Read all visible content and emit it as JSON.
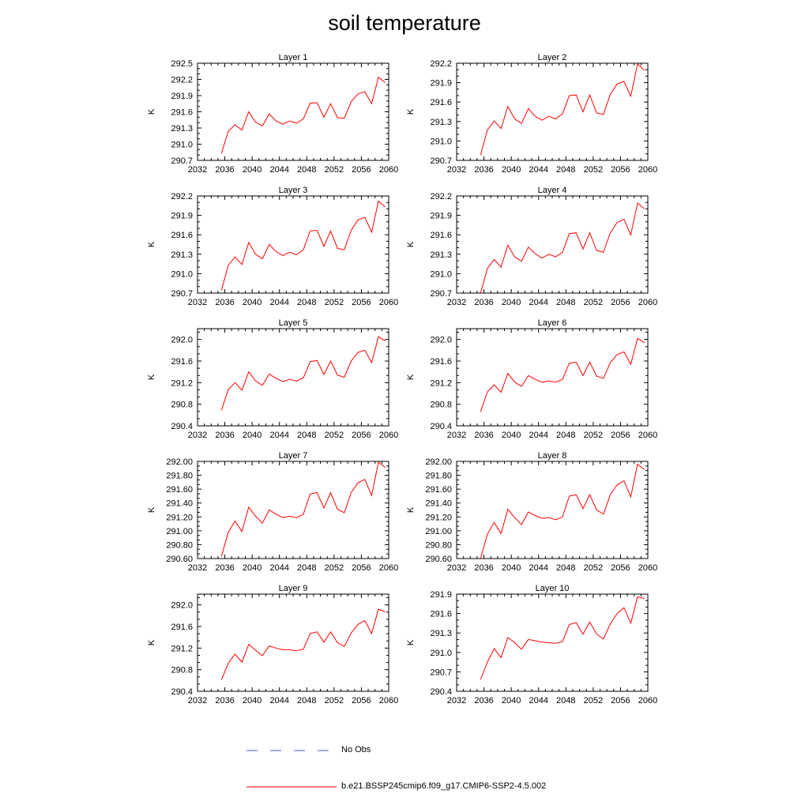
{
  "title": "soil temperature",
  "legend": {
    "entries": [
      {
        "label": "No Obs",
        "color": "#4a5ac8",
        "dash": true
      },
      {
        "label": "b.e21.BSSP245cmip6.f09_g17.CMIP6-SSP2-4.5.002",
        "color": "#ff0000",
        "dash": false
      }
    ]
  },
  "chart_data": [
    {
      "type": "line",
      "title": "Layer 1",
      "ylabel": "K",
      "xlim": [
        2032,
        2060
      ],
      "ylim": [
        290.7,
        292.5
      ],
      "xticks": [
        "2032",
        "2036",
        "2040",
        "2044",
        "2048",
        "2052",
        "2056",
        "2060"
      ],
      "yticks": [
        "290.7",
        "291.0",
        "291.3",
        "291.6",
        "291.9",
        "292.2",
        "292.5"
      ],
      "series": [
        {
          "color": "#ff0000",
          "x": [
            2035.5,
            2036.5,
            2037.5,
            2038.5,
            2039.5,
            2040.5,
            2041.5,
            2042.5,
            2043.5,
            2044.5,
            2045.5,
            2046.5,
            2047.5,
            2048.5,
            2049.5,
            2050.5,
            2051.5,
            2052.5,
            2053.5,
            2054.5,
            2055.5,
            2056.5,
            2057.5,
            2058.5,
            2059.5
          ],
          "y": [
            290.83,
            291.24,
            291.36,
            291.26,
            291.6,
            291.41,
            291.34,
            291.56,
            291.43,
            291.37,
            291.43,
            291.39,
            291.47,
            291.76,
            291.77,
            291.5,
            291.75,
            291.49,
            291.48,
            291.79,
            291.93,
            291.97,
            291.75,
            292.24,
            292.14
          ]
        }
      ]
    },
    {
      "type": "line",
      "title": "Layer 2",
      "ylabel": "K",
      "xlim": [
        2032,
        2060
      ],
      "ylim": [
        290.7,
        292.2
      ],
      "xticks": [
        "2032",
        "2036",
        "2040",
        "2044",
        "2048",
        "2052",
        "2056",
        "2060"
      ],
      "yticks": [
        "290.7",
        "291.0",
        "291.3",
        "291.6",
        "291.9",
        "292.2"
      ],
      "series": [
        {
          "color": "#ff0000",
          "x": [
            2035.5,
            2036.5,
            2037.5,
            2038.5,
            2039.5,
            2040.5,
            2041.5,
            2042.5,
            2043.5,
            2044.5,
            2045.5,
            2046.5,
            2047.5,
            2048.5,
            2049.5,
            2050.5,
            2051.5,
            2052.5,
            2053.5,
            2054.5,
            2055.5,
            2056.5,
            2057.5,
            2058.5,
            2059.5
          ],
          "y": [
            290.78,
            291.17,
            291.31,
            291.19,
            291.53,
            291.34,
            291.27,
            291.5,
            291.38,
            291.32,
            291.38,
            291.34,
            291.42,
            291.7,
            291.71,
            291.45,
            291.71,
            291.43,
            291.41,
            291.72,
            291.88,
            291.92,
            291.69,
            292.19,
            292.09
          ]
        }
      ]
    },
    {
      "type": "line",
      "title": "Layer 3",
      "ylabel": "K",
      "xlim": [
        2032,
        2060
      ],
      "ylim": [
        290.7,
        292.2
      ],
      "xticks": [
        "2032",
        "2036",
        "2040",
        "2044",
        "2048",
        "2052",
        "2056",
        "2060"
      ],
      "yticks": [
        "290.7",
        "291.0",
        "291.3",
        "291.6",
        "291.9",
        "292.2"
      ],
      "series": [
        {
          "color": "#ff0000",
          "x": [
            2035.5,
            2036.5,
            2037.5,
            2038.5,
            2039.5,
            2040.5,
            2041.5,
            2042.5,
            2043.5,
            2044.5,
            2045.5,
            2046.5,
            2047.5,
            2048.5,
            2049.5,
            2050.5,
            2051.5,
            2052.5,
            2053.5,
            2054.5,
            2055.5,
            2056.5,
            2057.5,
            2058.5,
            2059.5
          ],
          "y": [
            290.74,
            291.13,
            291.26,
            291.14,
            291.48,
            291.3,
            291.23,
            291.45,
            291.34,
            291.28,
            291.33,
            291.29,
            291.37,
            291.66,
            291.67,
            291.42,
            291.66,
            291.39,
            291.37,
            291.67,
            291.83,
            291.87,
            291.64,
            292.12,
            292.03
          ]
        }
      ]
    },
    {
      "type": "line",
      "title": "Layer 4",
      "ylabel": "K",
      "xlim": [
        2032,
        2060
      ],
      "ylim": [
        290.7,
        292.2
      ],
      "xticks": [
        "2032",
        "2036",
        "2040",
        "2044",
        "2048",
        "2052",
        "2056",
        "2060"
      ],
      "yticks": [
        "290.7",
        "291.0",
        "291.3",
        "291.6",
        "291.9",
        "292.2"
      ],
      "series": [
        {
          "color": "#ff0000",
          "x": [
            2035.5,
            2036.5,
            2037.5,
            2038.5,
            2039.5,
            2040.5,
            2041.5,
            2042.5,
            2043.5,
            2044.5,
            2045.5,
            2046.5,
            2047.5,
            2048.5,
            2049.5,
            2050.5,
            2051.5,
            2052.5,
            2053.5,
            2054.5,
            2055.5,
            2056.5,
            2057.5,
            2058.5,
            2059.5
          ],
          "y": [
            290.7,
            291.08,
            291.22,
            291.1,
            291.44,
            291.26,
            291.19,
            291.41,
            291.31,
            291.24,
            291.3,
            291.26,
            291.33,
            291.62,
            291.63,
            291.38,
            291.63,
            291.36,
            291.33,
            291.63,
            291.79,
            291.84,
            291.6,
            292.09,
            292.0
          ]
        }
      ]
    },
    {
      "type": "line",
      "title": "Layer 5",
      "ylabel": "K",
      "xlim": [
        2032,
        2060
      ],
      "ylim": [
        290.4,
        292.2
      ],
      "xticks": [
        "2032",
        "2036",
        "2040",
        "2044",
        "2048",
        "2052",
        "2056",
        "2060"
      ],
      "yticks": [
        "290.4",
        "290.8",
        "291.2",
        "291.6",
        "292.0"
      ],
      "series": [
        {
          "color": "#ff0000",
          "x": [
            2035.5,
            2036.5,
            2037.5,
            2038.5,
            2039.5,
            2040.5,
            2041.5,
            2042.5,
            2043.5,
            2044.5,
            2045.5,
            2046.5,
            2047.5,
            2048.5,
            2049.5,
            2050.5,
            2051.5,
            2052.5,
            2053.5,
            2054.5,
            2055.5,
            2056.5,
            2057.5,
            2058.5,
            2059.5
          ],
          "y": [
            290.69,
            291.07,
            291.2,
            291.06,
            291.4,
            291.23,
            291.15,
            291.36,
            291.28,
            291.22,
            291.26,
            291.23,
            291.29,
            291.59,
            291.61,
            291.35,
            291.6,
            291.34,
            291.3,
            291.6,
            291.76,
            291.8,
            291.57,
            292.05,
            291.97
          ]
        }
      ]
    },
    {
      "type": "line",
      "title": "Layer 6",
      "ylabel": "K",
      "xlim": [
        2032,
        2060
      ],
      "ylim": [
        290.4,
        292.2
      ],
      "xticks": [
        "2032",
        "2036",
        "2040",
        "2044",
        "2048",
        "2052",
        "2056",
        "2060"
      ],
      "yticks": [
        "290.4",
        "290.8",
        "291.2",
        "291.6",
        "292.0"
      ],
      "series": [
        {
          "color": "#ff0000",
          "x": [
            2035.5,
            2036.5,
            2037.5,
            2038.5,
            2039.5,
            2040.5,
            2041.5,
            2042.5,
            2043.5,
            2044.5,
            2045.5,
            2046.5,
            2047.5,
            2048.5,
            2049.5,
            2050.5,
            2051.5,
            2052.5,
            2053.5,
            2054.5,
            2055.5,
            2056.5,
            2057.5,
            2058.5,
            2059.5
          ],
          "y": [
            290.66,
            291.03,
            291.16,
            291.02,
            291.37,
            291.21,
            291.13,
            291.33,
            291.26,
            291.21,
            291.23,
            291.21,
            291.26,
            291.56,
            291.58,
            291.33,
            291.58,
            291.32,
            291.28,
            291.57,
            291.72,
            291.77,
            291.54,
            292.02,
            291.94
          ]
        }
      ]
    },
    {
      "type": "line",
      "title": "Layer 7",
      "ylabel": "K",
      "xlim": [
        2032,
        2060
      ],
      "ylim": [
        290.6,
        292.0
      ],
      "xticks": [
        "2032",
        "2036",
        "2040",
        "2044",
        "2048",
        "2052",
        "2056",
        "2060"
      ],
      "yticks": [
        "290.60",
        "290.80",
        "291.00",
        "291.20",
        "291.40",
        "291.60",
        "291.80",
        "292.00"
      ],
      "series": [
        {
          "color": "#ff0000",
          "x": [
            2035.5,
            2036.5,
            2037.5,
            2038.5,
            2039.5,
            2040.5,
            2041.5,
            2042.5,
            2043.5,
            2044.5,
            2045.5,
            2046.5,
            2047.5,
            2048.5,
            2049.5,
            2050.5,
            2051.5,
            2052.5,
            2053.5,
            2054.5,
            2055.5,
            2056.5,
            2057.5,
            2058.5,
            2059.5
          ],
          "y": [
            290.63,
            290.98,
            291.14,
            290.99,
            291.34,
            291.21,
            291.11,
            291.3,
            291.24,
            291.19,
            291.21,
            291.19,
            291.24,
            291.53,
            291.55,
            291.33,
            291.55,
            291.31,
            291.26,
            291.55,
            291.69,
            291.74,
            291.51,
            291.99,
            291.91
          ]
        }
      ]
    },
    {
      "type": "line",
      "title": "Layer 8",
      "ylabel": "K",
      "xlim": [
        2032,
        2060
      ],
      "ylim": [
        290.6,
        292.0
      ],
      "xticks": [
        "2032",
        "2036",
        "2040",
        "2044",
        "2048",
        "2052",
        "2056",
        "2060"
      ],
      "yticks": [
        "290.60",
        "290.80",
        "291.00",
        "291.20",
        "291.40",
        "291.60",
        "291.80",
        "292.00"
      ],
      "series": [
        {
          "color": "#ff0000",
          "x": [
            2035.5,
            2036.5,
            2037.5,
            2038.5,
            2039.5,
            2040.5,
            2041.5,
            2042.5,
            2043.5,
            2044.5,
            2045.5,
            2046.5,
            2047.5,
            2048.5,
            2049.5,
            2050.5,
            2051.5,
            2052.5,
            2053.5,
            2054.5,
            2055.5,
            2056.5,
            2057.5,
            2058.5,
            2059.5
          ],
          "y": [
            290.6,
            290.95,
            291.12,
            290.96,
            291.31,
            291.19,
            291.09,
            291.27,
            291.22,
            291.18,
            291.19,
            291.16,
            291.2,
            291.5,
            291.52,
            291.32,
            291.52,
            291.3,
            291.24,
            291.52,
            291.66,
            291.72,
            291.49,
            291.96,
            291.88
          ]
        }
      ]
    },
    {
      "type": "line",
      "title": "Layer 9",
      "ylabel": "K",
      "xlim": [
        2032,
        2060
      ],
      "ylim": [
        290.4,
        292.2
      ],
      "xticks": [
        "2032",
        "2036",
        "2040",
        "2044",
        "2048",
        "2052",
        "2056",
        "2060"
      ],
      "yticks": [
        "290.4",
        "290.8",
        "291.2",
        "291.6",
        "292.0"
      ],
      "series": [
        {
          "color": "#ff0000",
          "x": [
            2035.5,
            2036.5,
            2037.5,
            2038.5,
            2039.5,
            2040.5,
            2041.5,
            2042.5,
            2043.5,
            2044.5,
            2045.5,
            2046.5,
            2047.5,
            2048.5,
            2049.5,
            2050.5,
            2051.5,
            2052.5,
            2053.5,
            2054.5,
            2055.5,
            2056.5,
            2057.5,
            2058.5,
            2059.5
          ],
          "y": [
            290.61,
            290.92,
            291.09,
            290.94,
            291.27,
            291.16,
            291.06,
            291.24,
            291.2,
            291.17,
            291.17,
            291.15,
            291.18,
            291.47,
            291.5,
            291.31,
            291.5,
            291.3,
            291.23,
            291.48,
            291.64,
            291.71,
            291.47,
            291.92,
            291.87
          ]
        }
      ]
    },
    {
      "type": "line",
      "title": "Layer 10",
      "ylabel": "K",
      "xlim": [
        2032,
        2060
      ],
      "ylim": [
        290.4,
        291.9
      ],
      "xticks": [
        "2032",
        "2036",
        "2040",
        "2044",
        "2048",
        "2052",
        "2056",
        "2060"
      ],
      "yticks": [
        "290.4",
        "290.7",
        "291.0",
        "291.3",
        "291.6",
        "291.9"
      ],
      "series": [
        {
          "color": "#ff0000",
          "x": [
            2035.5,
            2036.5,
            2037.5,
            2038.5,
            2039.5,
            2040.5,
            2041.5,
            2042.5,
            2043.5,
            2044.5,
            2045.5,
            2046.5,
            2047.5,
            2048.5,
            2049.5,
            2050.5,
            2051.5,
            2052.5,
            2053.5,
            2054.5,
            2055.5,
            2056.5,
            2057.5,
            2058.5,
            2059.5
          ],
          "y": [
            290.58,
            290.85,
            291.06,
            290.92,
            291.23,
            291.15,
            291.05,
            291.2,
            291.18,
            291.16,
            291.15,
            291.14,
            291.17,
            291.43,
            291.46,
            291.28,
            291.47,
            291.28,
            291.21,
            291.44,
            291.6,
            291.69,
            291.45,
            291.86,
            291.83
          ]
        }
      ]
    }
  ]
}
